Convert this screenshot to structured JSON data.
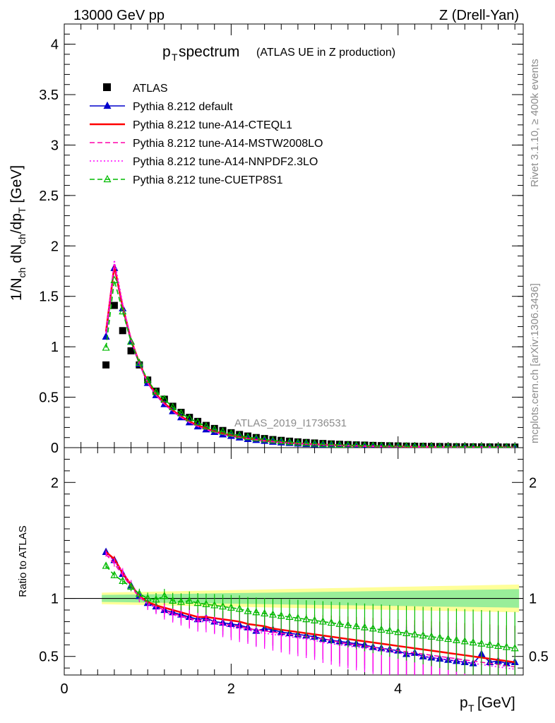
{
  "chart_data": [
    {
      "type": "line",
      "panel": "main",
      "header_left": "13000 GeV pp",
      "header_right": "Z (Drell-Yan)",
      "title_main": "p",
      "title_sub": "T",
      "title_rest": " spectrum",
      "title_paren": "(ATLAS UE in Z production)",
      "ylabel": "1/N_ch dN_ch/dp_T [GeV]",
      "xlim": [
        0,
        5.5
      ],
      "ylim": [
        0,
        4.2
      ],
      "yticks": [
        0,
        0.5,
        1,
        1.5,
        2,
        2.5,
        3,
        3.5,
        4
      ],
      "ytick_labels": [
        "0",
        "0.5",
        "1",
        "1.5",
        "2",
        "2.5",
        "3",
        "3.5",
        "4"
      ],
      "watermark": "ATLAS_2019_I1736531",
      "side_label_top": "Rivet 3.1.10, ≥ 400k events",
      "side_label_bottom": "mcplots.cern.ch [arXiv:1306.3436]",
      "x": [
        0.5,
        0.6,
        0.7,
        0.8,
        0.9,
        1.0,
        1.1,
        1.2,
        1.3,
        1.4,
        1.5,
        1.6,
        1.7,
        1.8,
        1.9,
        2.0,
        2.1,
        2.2,
        2.3,
        2.4,
        2.5,
        2.6,
        2.7,
        2.8,
        2.9,
        3.0,
        3.1,
        3.2,
        3.3,
        3.4,
        3.5,
        3.6,
        3.7,
        3.8,
        3.9,
        4.0,
        4.1,
        4.2,
        4.3,
        4.4,
        4.5,
        4.6,
        4.7,
        4.8,
        4.9,
        5.0,
        5.1,
        5.2,
        5.3,
        5.4
      ],
      "series": [
        {
          "name": "ATLAS",
          "style": "data",
          "color": "#000000",
          "values": [
            0.82,
            1.41,
            1.16,
            0.96,
            0.82,
            0.67,
            0.56,
            0.48,
            0.41,
            0.35,
            0.3,
            0.26,
            0.22,
            0.19,
            0.17,
            0.148,
            0.13,
            0.115,
            0.1,
            0.09,
            0.08,
            0.072,
            0.064,
            0.057,
            0.051,
            0.046,
            0.041,
            0.037,
            0.033,
            0.03,
            0.027,
            0.025,
            0.022,
            0.02,
            0.018,
            0.017,
            0.015,
            0.014,
            0.013,
            0.012,
            0.011,
            0.01,
            0.009,
            0.0085,
            0.008,
            0.0075,
            0.007,
            0.0065,
            0.006,
            0.0055
          ]
        },
        {
          "name": "Pythia 8.212 default",
          "style": "solid-tri",
          "color": "#0000cc",
          "values": [
            1.1,
            1.78,
            1.38,
            1.05,
            0.83,
            0.64,
            0.52,
            0.43,
            0.36,
            0.3,
            0.25,
            0.21,
            0.18,
            0.155,
            0.13,
            0.115,
            0.1,
            0.085,
            0.075,
            0.066,
            0.058,
            0.051,
            0.045,
            0.04,
            0.035,
            0.031,
            0.027,
            0.024,
            0.021,
            0.019,
            0.017,
            0.015,
            0.013,
            0.012,
            0.011,
            0.01,
            0.009,
            0.008,
            0.007,
            0.0065,
            0.006,
            0.0055,
            0.005,
            0.0045,
            0.004,
            0.0038,
            0.0035,
            0.0032,
            0.003,
            0.0028
          ]
        },
        {
          "name": "Pythia 8.212 tune-A14-CTEQL1",
          "style": "solid",
          "color": "#ff0000",
          "values": [
            1.15,
            1.8,
            1.4,
            1.07,
            0.84,
            0.65,
            0.53,
            0.44,
            0.37,
            0.31,
            0.26,
            0.22,
            0.19,
            0.16,
            0.14,
            0.12,
            0.104,
            0.09,
            0.079,
            0.069,
            0.061,
            0.054,
            0.047,
            0.042,
            0.037,
            0.033,
            0.029,
            0.026,
            0.023,
            0.02,
            0.018,
            0.016,
            0.014,
            0.013,
            0.012,
            0.011,
            0.0095,
            0.0085,
            0.0078,
            0.007,
            0.0064,
            0.0058,
            0.0053,
            0.0048,
            0.0044,
            0.0041,
            0.0038,
            0.0035,
            0.0032,
            0.003
          ]
        },
        {
          "name": "Pythia 8.212 tune-A14-MSTW2008LO",
          "style": "dashed",
          "color": "#ff00aa",
          "values": [
            1.13,
            1.82,
            1.41,
            1.07,
            0.83,
            0.64,
            0.52,
            0.43,
            0.36,
            0.3,
            0.25,
            0.21,
            0.18,
            0.155,
            0.132,
            0.115,
            0.1,
            0.086,
            0.076,
            0.067,
            0.059,
            0.052,
            0.046,
            0.041,
            0.036,
            0.032,
            0.028,
            0.025,
            0.022,
            0.02,
            0.017,
            0.015,
            0.014,
            0.012,
            0.011,
            0.01,
            0.009,
            0.008,
            0.0074,
            0.0067,
            0.006,
            0.0055,
            0.005,
            0.0046,
            0.0042,
            0.0039,
            0.0036,
            0.0033,
            0.003,
            0.0028
          ]
        },
        {
          "name": "Pythia 8.212 tune-A14-NNPDF2.3LO",
          "style": "dotted",
          "color": "#ff00ff",
          "values": [
            1.14,
            1.86,
            1.43,
            1.08,
            0.84,
            0.64,
            0.52,
            0.43,
            0.36,
            0.3,
            0.25,
            0.21,
            0.18,
            0.152,
            0.13,
            0.112,
            0.098,
            0.084,
            0.074,
            0.065,
            0.057,
            0.05,
            0.044,
            0.039,
            0.034,
            0.03,
            0.027,
            0.024,
            0.021,
            0.019,
            0.017,
            0.015,
            0.013,
            0.012,
            0.011,
            0.0098,
            0.0088,
            0.008,
            0.0072,
            0.0065,
            0.0059,
            0.0054,
            0.0049,
            0.0045,
            0.0041,
            0.0038,
            0.0035,
            0.0032,
            0.003,
            0.0027
          ]
        },
        {
          "name": "Pythia 8.212 tune-CUETP8S1",
          "style": "dashed-opentri",
          "color": "#00bb00",
          "values": [
            0.99,
            1.66,
            1.35,
            1.05,
            0.84,
            0.67,
            0.55,
            0.48,
            0.4,
            0.34,
            0.29,
            0.25,
            0.21,
            0.18,
            0.158,
            0.138,
            0.12,
            0.104,
            0.092,
            0.081,
            0.071,
            0.063,
            0.055,
            0.049,
            0.044,
            0.039,
            0.034,
            0.031,
            0.028,
            0.025,
            0.022,
            0.02,
            0.018,
            0.016,
            0.015,
            0.013,
            0.012,
            0.011,
            0.01,
            0.009,
            0.0082,
            0.0075,
            0.0068,
            0.0062,
            0.0057,
            0.0052,
            0.0048,
            0.0044,
            0.004,
            0.0037
          ]
        }
      ]
    },
    {
      "type": "line",
      "panel": "ratio",
      "ylabel": "Ratio to ATLAS",
      "xlabel": "p_T [GeV]",
      "ylim": [
        0.34,
        2.3
      ],
      "yticks": [
        0.5,
        1,
        2
      ],
      "ytick_labels": [
        "0.5",
        "1",
        "2"
      ],
      "xticks": [
        0,
        2,
        4
      ],
      "xtick_labels": [
        "0",
        "2",
        "4"
      ],
      "band_inner_halfwidth": [
        0.03,
        0.08
      ],
      "band_outer_halfwidth": [
        0.05,
        0.12
      ],
      "series": [
        {
          "name": "Pythia 8.212 default",
          "color": "#0000cc",
          "values": [
            1.4,
            1.33,
            1.21,
            1.11,
            1.02,
            0.96,
            0.93,
            0.9,
            0.88,
            0.86,
            0.84,
            0.82,
            0.83,
            0.8,
            0.79,
            0.78,
            0.77,
            0.75,
            0.72,
            0.74,
            0.73,
            0.71,
            0.7,
            0.69,
            0.68,
            0.67,
            0.65,
            0.64,
            0.63,
            0.62,
            0.61,
            0.6,
            0.58,
            0.57,
            0.56,
            0.55,
            0.52,
            0.53,
            0.5,
            0.49,
            0.48,
            0.47,
            0.46,
            0.45,
            0.44,
            0.52,
            0.45,
            0.46,
            0.44,
            0.45
          ]
        },
        {
          "name": "Pythia 8.212 tune-A14-CTEQL1",
          "color": "#ff0000",
          "values": [
            1.4,
            1.34,
            1.22,
            1.12,
            1.02,
            0.97,
            0.94,
            0.92,
            0.9,
            0.88,
            0.86,
            0.84,
            0.84,
            0.83,
            0.82,
            0.81,
            0.8,
            0.78,
            0.77,
            0.76,
            0.74,
            0.73,
            0.72,
            0.71,
            0.7,
            0.69,
            0.68,
            0.67,
            0.66,
            0.65,
            0.64,
            0.63,
            0.62,
            0.61,
            0.6,
            0.59,
            0.58,
            0.57,
            0.56,
            0.55,
            0.54,
            0.53,
            0.52,
            0.51,
            0.5,
            0.49,
            0.48,
            0.47,
            0.46,
            0.45
          ]
        },
        {
          "name": "Pythia 8.212 tune-A14-MSTW2008LO",
          "color": "#ff00aa",
          "values": [
            1.38,
            1.3,
            1.2,
            1.1,
            1.01,
            0.96,
            0.93,
            0.9,
            0.87,
            0.85,
            0.83,
            0.81,
            0.82,
            0.8,
            0.78,
            0.77,
            0.76,
            0.74,
            0.73,
            0.72,
            0.71,
            0.7,
            0.69,
            0.68,
            0.67,
            0.66,
            0.65,
            0.64,
            0.62,
            0.61,
            0.6,
            0.59,
            0.58,
            0.57,
            0.56,
            0.55,
            0.54,
            0.53,
            0.52,
            0.51,
            0.5,
            0.49,
            0.48,
            0.47,
            0.46,
            0.45,
            0.44,
            0.43,
            0.42,
            0.41
          ]
        },
        {
          "name": "Pythia 8.212 tune-A14-NNPDF2.3LO",
          "color": "#ff00ff",
          "values": [
            1.39,
            1.32,
            1.23,
            1.12,
            1.02,
            0.95,
            0.92,
            0.88,
            0.86,
            0.84,
            0.82,
            0.8,
            0.8,
            0.79,
            0.77,
            0.75,
            0.74,
            0.73,
            0.71,
            0.7,
            0.69,
            0.68,
            0.67,
            0.66,
            0.65,
            0.64,
            0.62,
            0.61,
            0.6,
            0.59,
            0.58,
            0.57,
            0.56,
            0.55,
            0.54,
            0.53,
            0.52,
            0.51,
            0.5,
            0.49,
            0.48,
            0.47,
            0.46,
            0.45,
            0.44,
            0.43,
            0.42,
            0.41,
            0.4,
            0.39
          ]
        },
        {
          "name": "Pythia 8.212 tune-CUETP8S1",
          "color": "#00bb00",
          "values": [
            1.28,
            1.2,
            1.15,
            1.1,
            1.04,
            1.0,
            0.99,
            1.02,
            0.98,
            0.97,
            0.98,
            0.96,
            0.95,
            0.94,
            0.93,
            0.92,
            0.91,
            0.89,
            0.88,
            0.87,
            0.86,
            0.85,
            0.84,
            0.83,
            0.82,
            0.81,
            0.8,
            0.79,
            0.78,
            0.77,
            0.76,
            0.75,
            0.74,
            0.73,
            0.72,
            0.71,
            0.7,
            0.69,
            0.68,
            0.67,
            0.66,
            0.65,
            0.64,
            0.63,
            0.62,
            0.61,
            0.6,
            0.59,
            0.58,
            0.57
          ]
        }
      ]
    }
  ]
}
